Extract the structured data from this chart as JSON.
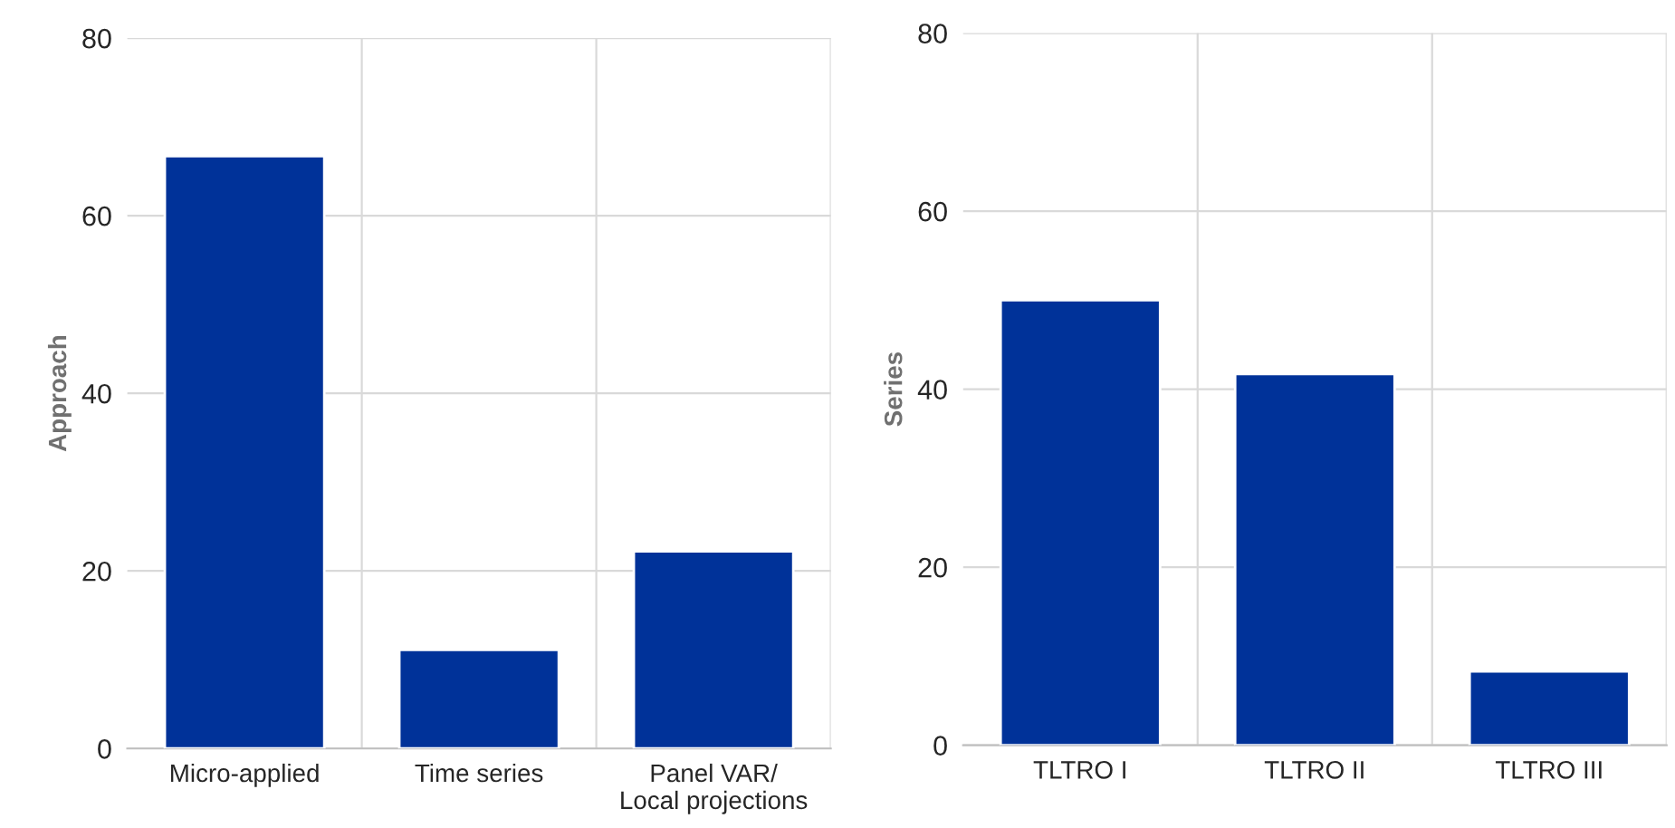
{
  "chart_data": [
    {
      "type": "bar",
      "ylabel": "Approach",
      "categories": [
        "Micro-applied",
        "Time series",
        "Panel VAR/\nLocal projections"
      ],
      "values": [
        66.7,
        11.1,
        22.2
      ],
      "color": "#003299",
      "ylim": [
        0,
        80
      ],
      "yticks": [
        0,
        20,
        40,
        60,
        80
      ],
      "grid": true
    },
    {
      "type": "bar",
      "ylabel": "Series",
      "categories": [
        "TLTRO I",
        "TLTRO II",
        "TLTRO III"
      ],
      "values": [
        50,
        41.7,
        8.3
      ],
      "color": "#003299",
      "ylim": [
        0,
        80
      ],
      "yticks": [
        0,
        20,
        40,
        60,
        80
      ],
      "grid": true
    }
  ]
}
